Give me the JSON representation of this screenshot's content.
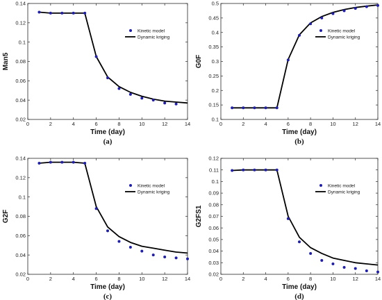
{
  "colors": {
    "kinetic": "#1f1fa8",
    "kriging": "#000000",
    "axis": "#262626"
  },
  "legend": {
    "kinetic": "Kinetic model",
    "kriging": "Dynamic kriging",
    "placement": "right"
  },
  "chart_data": [
    {
      "type": "line",
      "panel_label": "(a)",
      "xlabel": "Time (day)",
      "ylabel": "Man5",
      "xlim": [
        0,
        14
      ],
      "ylim": [
        0.02,
        0.14
      ],
      "xticks": [
        0,
        2,
        4,
        6,
        8,
        10,
        12,
        14
      ],
      "yticks": [
        0.02,
        0.04,
        0.06,
        0.08,
        0.1,
        0.12,
        0.14
      ],
      "ytick_labels": [
        "0.02",
        "0.04",
        "0.06",
        "0.08",
        "0.1",
        "0.12",
        "0.14"
      ],
      "grid": false,
      "series": [
        {
          "name": "Kinetic model",
          "style": "markers",
          "x": [
            1,
            2,
            3,
            4,
            5,
            6,
            7,
            8,
            9,
            10,
            11,
            12,
            13
          ],
          "y": [
            0.131,
            0.13,
            0.13,
            0.13,
            0.13,
            0.085,
            0.063,
            0.052,
            0.046,
            0.042,
            0.04,
            0.037,
            0.036
          ]
        },
        {
          "name": "Dynamic kriging",
          "style": "line",
          "x": [
            1,
            2,
            3,
            4,
            5,
            6,
            7,
            8,
            9,
            10,
            11,
            12,
            13,
            14
          ],
          "y": [
            0.131,
            0.13,
            0.13,
            0.13,
            0.13,
            0.085,
            0.064,
            0.054,
            0.048,
            0.044,
            0.041,
            0.039,
            0.038,
            0.037
          ]
        }
      ]
    },
    {
      "type": "line",
      "panel_label": "(b)",
      "xlabel": "Time (day)",
      "ylabel": "G0F",
      "xlim": [
        0,
        14
      ],
      "ylim": [
        0.1,
        0.5
      ],
      "xticks": [
        0,
        2,
        4,
        6,
        8,
        10,
        12,
        14
      ],
      "yticks": [
        0.1,
        0.15,
        0.2,
        0.25,
        0.3,
        0.35,
        0.4,
        0.45,
        0.5
      ],
      "ytick_labels": [
        "0.1",
        "0.15",
        "0.2",
        "0.25",
        "0.3",
        "0.35",
        "0.4",
        "0.45",
        "0.5"
      ],
      "grid": false,
      "series": [
        {
          "name": "Kinetic model",
          "style": "markers",
          "x": [
            1,
            2,
            3,
            4,
            5,
            6,
            7,
            8,
            9,
            10,
            11,
            12,
            13,
            14
          ],
          "y": [
            0.14,
            0.14,
            0.14,
            0.14,
            0.14,
            0.305,
            0.39,
            0.43,
            0.45,
            0.465,
            0.475,
            0.483,
            0.489,
            0.493
          ]
        },
        {
          "name": "Dynamic kriging",
          "style": "line",
          "x": [
            1,
            2,
            3,
            4,
            5,
            6,
            7,
            8,
            9,
            10,
            11,
            12,
            13,
            14
          ],
          "y": [
            0.14,
            0.14,
            0.14,
            0.14,
            0.14,
            0.307,
            0.392,
            0.433,
            0.455,
            0.469,
            0.479,
            0.486,
            0.491,
            0.495
          ]
        }
      ]
    },
    {
      "type": "line",
      "panel_label": "(c)",
      "xlabel": "Time (day)",
      "ylabel": "G2F",
      "xlim": [
        0,
        14
      ],
      "ylim": [
        0.02,
        0.14
      ],
      "xticks": [
        0,
        2,
        4,
        6,
        8,
        10,
        12,
        14
      ],
      "yticks": [
        0.02,
        0.04,
        0.06,
        0.08,
        0.1,
        0.12,
        0.14
      ],
      "ytick_labels": [
        "0.02",
        "0.04",
        "0.06",
        "0.08",
        "0.1",
        "0.12",
        "0.14"
      ],
      "grid": false,
      "series": [
        {
          "name": "Kinetic model",
          "style": "markers",
          "x": [
            1,
            2,
            3,
            4,
            5,
            6,
            7,
            8,
            9,
            10,
            11,
            12,
            13,
            14
          ],
          "y": [
            0.135,
            0.136,
            0.136,
            0.136,
            0.135,
            0.088,
            0.065,
            0.054,
            0.048,
            0.044,
            0.04,
            0.038,
            0.037,
            0.036
          ]
        },
        {
          "name": "Dynamic kriging",
          "style": "line",
          "x": [
            1,
            2,
            3,
            4,
            5,
            6,
            7,
            8,
            9,
            10,
            11,
            12,
            13,
            14
          ],
          "y": [
            0.135,
            0.136,
            0.136,
            0.136,
            0.135,
            0.09,
            0.069,
            0.059,
            0.053,
            0.049,
            0.047,
            0.045,
            0.043,
            0.042
          ]
        }
      ]
    },
    {
      "type": "line",
      "panel_label": "(d)",
      "xlabel": "Time (day)",
      "ylabel": "G2FS1",
      "xlim": [
        0,
        14
      ],
      "ylim": [
        0.02,
        0.12
      ],
      "xticks": [
        0,
        2,
        4,
        6,
        8,
        10,
        12,
        14
      ],
      "yticks": [
        0.02,
        0.03,
        0.04,
        0.05,
        0.06,
        0.07,
        0.08,
        0.09,
        0.1,
        0.11,
        0.12
      ],
      "ytick_labels": [
        "0.02",
        "0.03",
        "0.04",
        "0.05",
        "0.06",
        "0.07",
        "0.08",
        "0.09",
        "0.1",
        "0.11",
        "0.12"
      ],
      "grid": false,
      "series": [
        {
          "name": "Kinetic model",
          "style": "markers",
          "x": [
            1,
            2,
            3,
            4,
            5,
            6,
            7,
            8,
            9,
            10,
            11,
            12,
            13,
            14
          ],
          "y": [
            0.1095,
            0.11,
            0.11,
            0.11,
            0.11,
            0.068,
            0.048,
            0.038,
            0.032,
            0.029,
            0.026,
            0.025,
            0.023,
            0.022
          ]
        },
        {
          "name": "Dynamic kriging",
          "style": "line",
          "x": [
            1,
            2,
            3,
            4,
            5,
            6,
            7,
            8,
            9,
            10,
            11,
            12,
            13,
            14
          ],
          "y": [
            0.1095,
            0.11,
            0.11,
            0.11,
            0.11,
            0.07,
            0.052,
            0.043,
            0.038,
            0.034,
            0.032,
            0.03,
            0.029,
            0.028
          ]
        }
      ]
    }
  ]
}
